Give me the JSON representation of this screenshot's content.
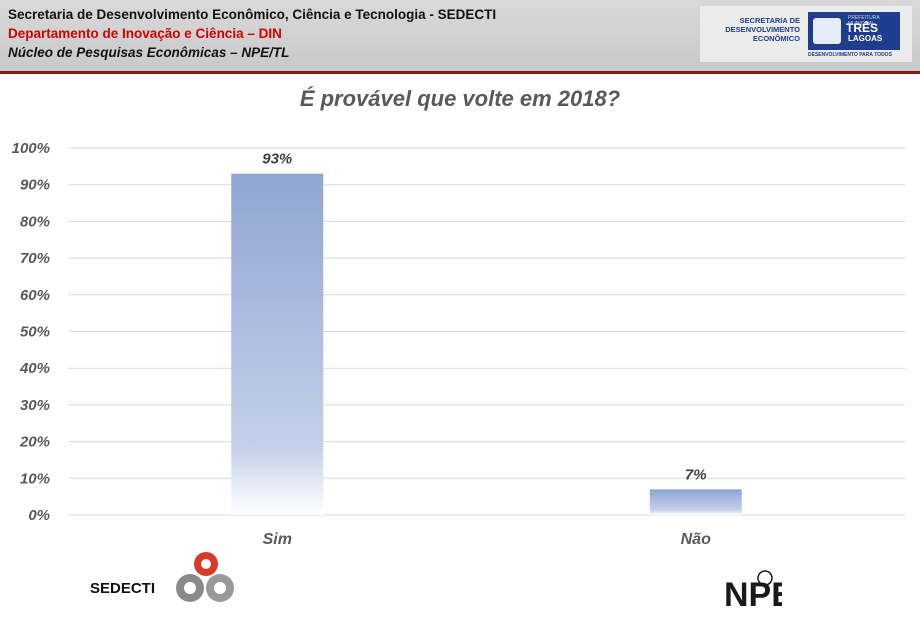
{
  "header": {
    "line1": "Secretaria de Desenvolvimento Econômico,  Ciência e Tecnologia - SEDECTI",
    "line2": "Departamento de Inovação e Ciência – DIN",
    "line3": "Núcleo de Pesquisas Econômicas – NPE/TL",
    "logo_text": "SECRETARIA DE DESENVOLVIMENTO ECONÔMICO",
    "city_line1": "TRÊS",
    "city_line2": "LAGOAS",
    "city_prefix": "PREFEITURA MUNICIPAL",
    "slogan": "DESENVOLVIMENTO PARA TODOS"
  },
  "chart_data": {
    "type": "bar",
    "title": "É provável que volte em 2018?",
    "categories": [
      "Sim",
      "Não"
    ],
    "values": [
      93,
      7
    ],
    "data_labels": [
      "93%",
      "7%"
    ],
    "yticks": [
      "0%",
      "10%",
      "20%",
      "30%",
      "40%",
      "50%",
      "60%",
      "70%",
      "80%",
      "90%",
      "100%"
    ],
    "ylim": [
      0,
      100
    ],
    "grid": true,
    "bar_color": "#8fa5d3"
  },
  "footer": {
    "sedecti_label": "SEDECTI",
    "npe_logo": "NPE"
  }
}
